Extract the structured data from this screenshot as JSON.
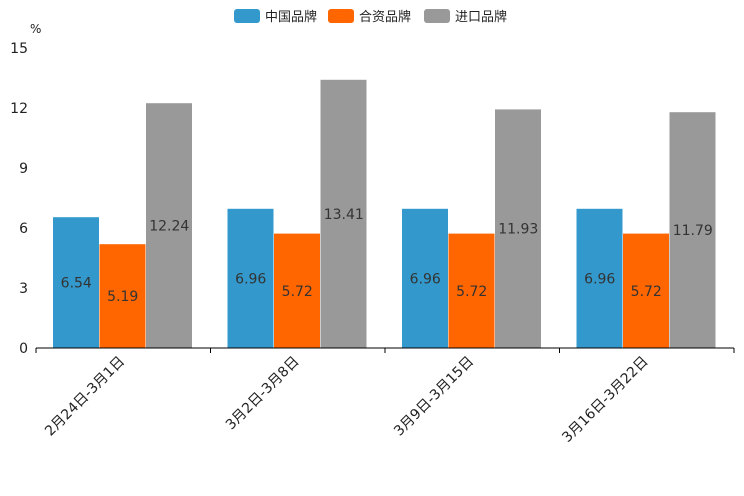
{
  "chart_data": {
    "type": "bar",
    "title": "",
    "xlabel": "",
    "ylabel": "%",
    "ylim": [
      0,
      15
    ],
    "yticks": [
      0,
      3,
      6,
      9,
      12,
      15
    ],
    "categories": [
      "2月24日-3月1日",
      "3月2日-3月8日",
      "3月9日-3月15日",
      "3月16日-3月22日"
    ],
    "series": [
      {
        "name": "中国品牌",
        "color": "#3399CC",
        "values": [
          6.54,
          6.96,
          6.96,
          6.96
        ]
      },
      {
        "name": "合资品牌",
        "color": "#FF6600",
        "values": [
          5.19,
          5.72,
          5.72,
          5.72
        ]
      },
      {
        "name": "进口品牌",
        "color": "#999999",
        "values": [
          12.24,
          13.41,
          11.93,
          11.79
        ]
      }
    ],
    "legend_position": "top-center"
  }
}
